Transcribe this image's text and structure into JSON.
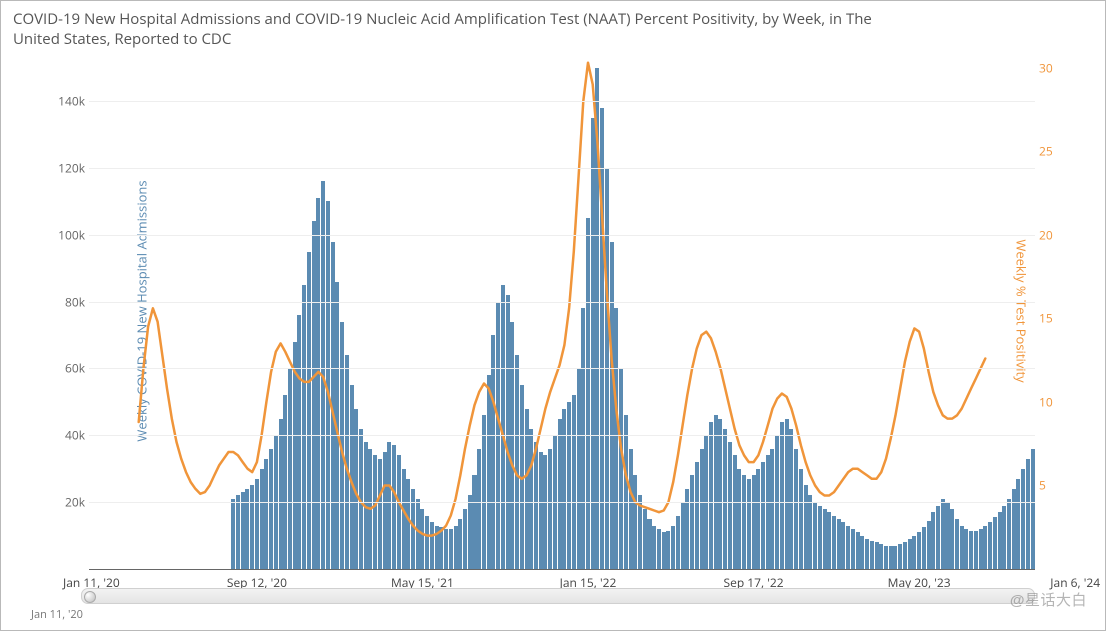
{
  "title": "COVID-19 New Hospital Admissions and COVID-19 Nucleic Acid Amplification Test (NAAT) Percent Positivity, by Week, in The United States, Reported to CDC",
  "chart": {
    "type": "bar+line dual-axis",
    "background_color": "#ffffff",
    "grid_color": "#eeeeee",
    "axis_color": "#666666",
    "title_fontsize": 15,
    "label_fontsize": 13,
    "tick_fontsize": 12,
    "line_width": 2.5,
    "bar_gap_ratio": 0.15,
    "y_left": {
      "label": "Weekly COVID-19 New Hospital Admissions",
      "label_color": "#5b8bb2",
      "min": 0,
      "max": 155000,
      "ticks": [
        20000,
        40000,
        60000,
        80000,
        100000,
        120000,
        140000
      ],
      "tick_labels": [
        "20k",
        "40k",
        "60k",
        "80k",
        "100k",
        "120k",
        "140k"
      ],
      "tick_color": "#666666"
    },
    "y_right": {
      "label": "Weekly % Test Positivity",
      "label_color": "#f0953a",
      "min": 0,
      "max": 31,
      "ticks": [
        5,
        10,
        15,
        20,
        25,
        30
      ],
      "tick_labels": [
        "5",
        "10",
        "15",
        "20",
        "25",
        "30"
      ],
      "tick_color": "#f0953a"
    },
    "x_ticks": [
      {
        "idx": 0,
        "label": "Jan 11, '20"
      },
      {
        "idx": 35,
        "label": "Sep 12, '20"
      },
      {
        "idx": 70,
        "label": "May 15, '21"
      },
      {
        "idx": 105,
        "label": "Jan 15, '22"
      },
      {
        "idx": 140,
        "label": "Sep 17, '22"
      },
      {
        "idx": 175,
        "label": "May 20, '23"
      },
      {
        "idx": 208,
        "label": "Jan 6, '24"
      }
    ],
    "bars": {
      "color": "#5b8bb2",
      "first_index_with_data": 30,
      "values": [
        0,
        0,
        0,
        0,
        0,
        0,
        0,
        0,
        0,
        0,
        0,
        0,
        0,
        0,
        0,
        0,
        0,
        0,
        0,
        0,
        0,
        0,
        0,
        0,
        0,
        0,
        0,
        0,
        0,
        0,
        21000,
        22000,
        23000,
        24000,
        25000,
        27000,
        30000,
        33000,
        36000,
        40000,
        45000,
        52000,
        60000,
        68000,
        76000,
        85000,
        95000,
        104000,
        111000,
        116000,
        110000,
        98000,
        86000,
        74000,
        64000,
        55000,
        48000,
        42000,
        38000,
        36000,
        34000,
        33000,
        35000,
        38000,
        37000,
        34000,
        30000,
        27000,
        24000,
        21000,
        18000,
        16000,
        14000,
        13000,
        12500,
        12000,
        12000,
        13000,
        15000,
        18000,
        22000,
        28000,
        36000,
        46000,
        58000,
        70000,
        80000,
        85000,
        82000,
        74000,
        64000,
        55000,
        48000,
        42000,
        38000,
        35000,
        34000,
        36000,
        40000,
        45000,
        48000,
        50000,
        52000,
        60000,
        78000,
        105000,
        135000,
        150000,
        138000,
        120000,
        98000,
        78000,
        60000,
        46000,
        36000,
        28000,
        22000,
        18000,
        15000,
        13000,
        12000,
        11000,
        11500,
        13000,
        16000,
        20000,
        24000,
        28000,
        32000,
        36000,
        40000,
        44000,
        46000,
        45000,
        42000,
        38000,
        34000,
        30000,
        28000,
        27000,
        28000,
        30000,
        32000,
        34000,
        36000,
        40000,
        44000,
        45000,
        42000,
        36000,
        30000,
        25000,
        22000,
        20000,
        19000,
        18000,
        17000,
        16000,
        15000,
        14000,
        13000,
        12000,
        11000,
        10000,
        9000,
        8500,
        8000,
        7500,
        7000,
        7000,
        7000,
        7500,
        8000,
        9000,
        10000,
        11000,
        12500,
        14500,
        17000,
        19000,
        21000,
        20000,
        18000,
        15000,
        13000,
        12000,
        11500,
        11500,
        12000,
        13000,
        14000,
        15500,
        17000,
        19000,
        21000,
        24000,
        27000,
        30000,
        33000,
        36000
      ]
    },
    "line": {
      "color": "#f0953a",
      "first_index_with_data": 10,
      "values": [
        null,
        null,
        null,
        null,
        null,
        null,
        null,
        null,
        null,
        null,
        8.8,
        12.0,
        14.5,
        15.6,
        14.8,
        12.8,
        10.8,
        9.0,
        7.6,
        6.6,
        5.8,
        5.2,
        4.8,
        4.5,
        4.6,
        5.0,
        5.6,
        6.2,
        6.6,
        7.0,
        7.0,
        6.8,
        6.4,
        6.0,
        5.8,
        6.4,
        8.0,
        10.0,
        11.8,
        13.0,
        13.5,
        13.0,
        12.4,
        11.8,
        11.4,
        11.2,
        11.2,
        11.5,
        11.8,
        11.5,
        10.6,
        9.4,
        8.2,
        7.0,
        6.0,
        5.2,
        4.5,
        4.0,
        3.7,
        3.6,
        3.8,
        4.4,
        5.0,
        5.0,
        4.6,
        4.0,
        3.5,
        3.0,
        2.6,
        2.3,
        2.1,
        2.0,
        2.0,
        2.1,
        2.3,
        2.6,
        3.2,
        4.2,
        5.6,
        7.2,
        8.6,
        9.8,
        10.6,
        11.1,
        10.8,
        10.0,
        9.0,
        8.0,
        7.0,
        6.2,
        5.6,
        5.4,
        5.6,
        6.2,
        7.2,
        8.4,
        9.6,
        10.6,
        11.4,
        12.2,
        13.4,
        15.6,
        19.0,
        23.5,
        28.0,
        30.3,
        29.0,
        25.5,
        21.0,
        16.5,
        12.5,
        9.5,
        7.2,
        5.6,
        4.6,
        4.0,
        3.8,
        3.7,
        3.6,
        3.5,
        3.4,
        3.5,
        4.0,
        5.2,
        6.8,
        8.6,
        10.4,
        12.0,
        13.2,
        14.0,
        14.2,
        13.8,
        13.0,
        12.0,
        10.8,
        9.6,
        8.4,
        7.4,
        6.8,
        6.4,
        6.4,
        6.8,
        7.6,
        8.6,
        9.6,
        10.2,
        10.5,
        10.3,
        9.6,
        8.6,
        7.4,
        6.4,
        5.6,
        5.0,
        4.6,
        4.4,
        4.4,
        4.6,
        5.0,
        5.4,
        5.8,
        6.0,
        6.0,
        5.8,
        5.6,
        5.4,
        5.4,
        5.8,
        6.6,
        7.8,
        9.2,
        10.8,
        12.4,
        13.6,
        14.4,
        14.2,
        13.2,
        11.8,
        10.6,
        9.8,
        9.2,
        9.0,
        9.0,
        9.2,
        9.6,
        10.2,
        10.8,
        11.4,
        12.0,
        12.6
      ]
    }
  },
  "scrollbar": {
    "start_label": "Jan 11, '20"
  },
  "watermark": "@星话大白"
}
